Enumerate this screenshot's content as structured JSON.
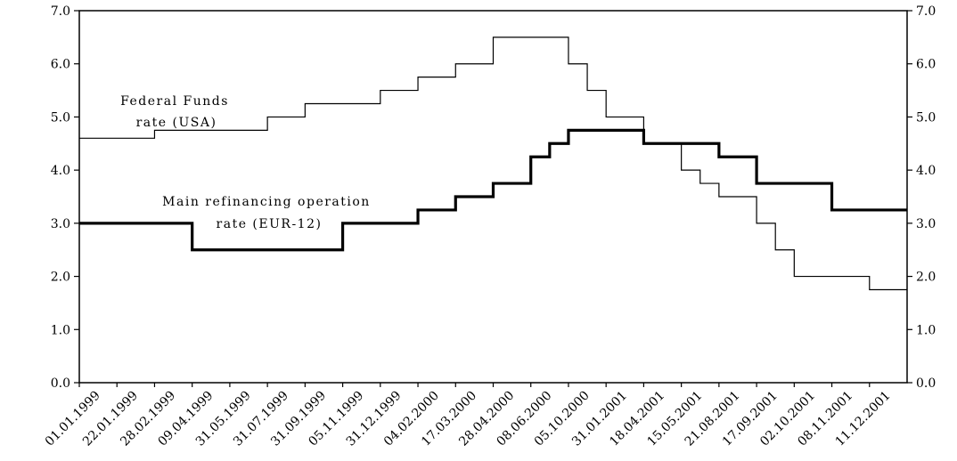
{
  "chart_data": {
    "type": "line",
    "step": true,
    "x_categories": [
      "01.01.1999",
      "22.01.1999",
      "28.02.1999",
      "09.04.1999",
      "31.05.1999",
      "31.07.1999",
      "31.09.1999",
      "05.11.1999",
      "31.12.1999",
      "04.02.2000",
      "17.03.2000",
      "28.04.2000",
      "08.06.2000",
      "05.10.2000",
      "31.01.2001",
      "18.04.2001",
      "15.05.2001",
      "21.08.2001",
      "17.09.2001",
      "02.10.2001",
      "08.11.2001",
      "11.12.2001"
    ],
    "y_ticks": [
      "0.0",
      "1.0",
      "2.0",
      "3.0",
      "4.0",
      "5.0",
      "6.0",
      "7.0"
    ],
    "ylim": [
      0,
      7
    ],
    "series": [
      {
        "name": "Federal Funds rate (USA)",
        "line": "thin",
        "steps": [
          {
            "start": "01.01.1999",
            "value": 4.6
          },
          {
            "start": "28.02.1999",
            "value": 4.75
          },
          {
            "start": "31.07.1999",
            "value": 5.0
          },
          {
            "start": "31.09.1999",
            "value": 5.25
          },
          {
            "start": "31.12.1999",
            "value": 5.5
          },
          {
            "start": "04.02.2000",
            "value": 5.75
          },
          {
            "start": "17.03.2000",
            "value": 6.0
          },
          {
            "start": "28.04.2000",
            "value": 6.5
          },
          {
            "start": "08.06.2000",
            "value": 6.5
          },
          {
            "start": "05.10.2000",
            "value": 6.0
          },
          {
            "start": "05.10.2000",
            "value": 5.5
          },
          {
            "start": "31.01.2001",
            "value": 5.0
          },
          {
            "start": "18.04.2001",
            "value": 4.5
          },
          {
            "start": "15.05.2001",
            "value": 4.0
          },
          {
            "start": "15.05.2001",
            "value": 3.75
          },
          {
            "start": "21.08.2001",
            "value": 3.5
          },
          {
            "start": "17.09.2001",
            "value": 3.0
          },
          {
            "start": "17.09.2001",
            "value": 2.5
          },
          {
            "start": "02.10.2001",
            "value": 2.0
          },
          {
            "start": "11.12.2001",
            "value": 1.75
          }
        ],
        "label_lines": [
          "Federal Funds",
          "rate (USA)"
        ]
      },
      {
        "name": "Main refinancing operation rate (EUR-12)",
        "line": "thick",
        "steps": [
          {
            "start": "01.01.1999",
            "value": 3.0
          },
          {
            "start": "09.04.1999",
            "value": 2.5
          },
          {
            "start": "05.11.1999",
            "value": 3.0
          },
          {
            "start": "04.02.2000",
            "value": 3.25
          },
          {
            "start": "17.03.2000",
            "value": 3.5
          },
          {
            "start": "28.04.2000",
            "value": 3.75
          },
          {
            "start": "08.06.2000",
            "value": 4.25
          },
          {
            "start": "08.06.2000",
            "value": 4.5
          },
          {
            "start": "05.10.2000",
            "value": 4.75
          },
          {
            "start": "18.04.2001",
            "value": 4.5
          },
          {
            "start": "21.08.2001",
            "value": 4.25
          },
          {
            "start": "17.09.2001",
            "value": 3.75
          },
          {
            "start": "08.11.2001",
            "value": 3.25
          }
        ],
        "label_lines": [
          "Main refinancing operation",
          "rate (EUR-12)"
        ]
      }
    ],
    "grid": false,
    "secondary_y_axis": true
  }
}
